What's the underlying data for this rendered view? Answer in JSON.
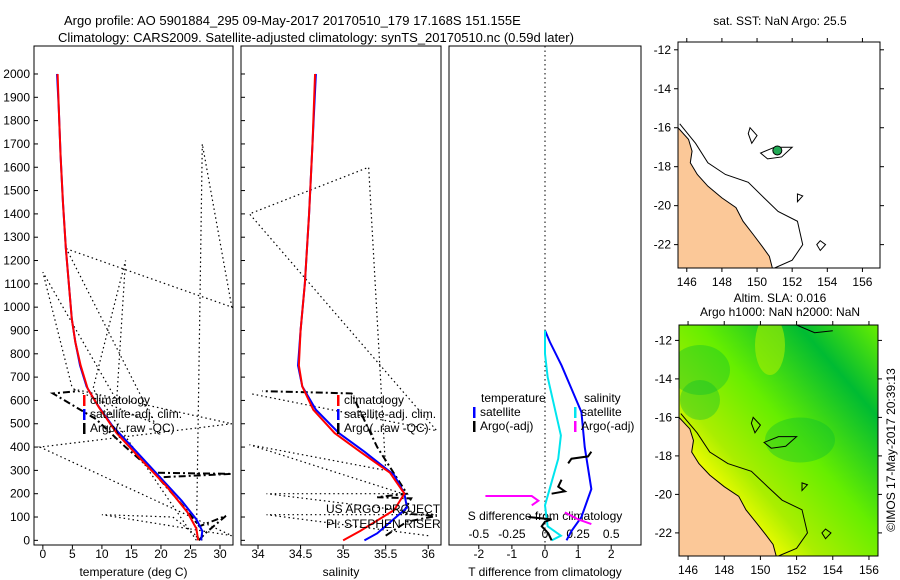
{
  "title_line1": "Argo profile: AO 5901884_295 09-May-2017 20170510_179 17.168S 151.155E",
  "title_line2": "Climatology: CARS2009. Satellite-adjusted climatology: synTS_20170510.nc (0.59d later)",
  "colors": {
    "climatology": "#ff0000",
    "satellite": "#0000ff",
    "argo": "#000000",
    "s_satellite": "#00e5ee",
    "s_argo": "#ff00ff",
    "land": "#fbc898",
    "sla_high": "#ffff00",
    "sla_mid": "#66ee00",
    "sla_low": "#00bb33",
    "float_marker": "#22aa55"
  },
  "chart_data": [
    {
      "type": "line",
      "name": "temperature-profile",
      "xlabel": "temperature (deg C)",
      "ylabel": "depth",
      "xlim": [
        -1.5,
        32.2
      ],
      "ylim": [
        2120,
        -20
      ],
      "xticks": [
        0,
        5,
        10,
        15,
        20,
        25,
        30
      ],
      "yticks": [
        0,
        100,
        200,
        300,
        400,
        500,
        600,
        700,
        800,
        900,
        1000,
        1100,
        1200,
        1300,
        1400,
        1500,
        1600,
        1700,
        1800,
        1900,
        2000
      ],
      "legend": [
        "climatology",
        "satellite-adj. clim.",
        "Argo(..raw -QC)"
      ],
      "series": [
        {
          "name": "climatology",
          "style": "solid",
          "color_key": "climatology",
          "points": [
            [
              26.3,
              0
            ],
            [
              26,
              50
            ],
            [
              24.5,
              120
            ],
            [
              21,
              230
            ],
            [
              16.5,
              350
            ],
            [
              12.5,
              460
            ],
            [
              9.5,
              570
            ],
            [
              7.6,
              650
            ],
            [
              6.4,
              750
            ],
            [
              5.5,
              850
            ],
            [
              4.9,
              950
            ],
            [
              4.4,
              1100
            ],
            [
              3.9,
              1250
            ],
            [
              3.4,
              1450
            ],
            [
              3,
              1650
            ],
            [
              2.7,
              1850
            ],
            [
              2.5,
              2000
            ]
          ]
        },
        {
          "name": "satellite-adj. clim.",
          "style": "solid",
          "color_key": "satellite",
          "points": [
            [
              26.8,
              0
            ],
            [
              27,
              40
            ],
            [
              26,
              90
            ],
            [
              23.5,
              170
            ],
            [
              19.5,
              280
            ],
            [
              15.5,
              390
            ],
            [
              11.8,
              490
            ],
            [
              9,
              590
            ],
            [
              7.4,
              660
            ],
            [
              6.3,
              750
            ],
            [
              5.5,
              850
            ],
            [
              4.9,
              950
            ],
            [
              4.4,
              1100
            ],
            [
              3.9,
              1250
            ],
            [
              3.4,
              1450
            ],
            [
              3,
              1650
            ],
            [
              2.7,
              1850
            ],
            [
              2.4,
              2000
            ]
          ]
        },
        {
          "name": "Argo(..raw -QC)",
          "style": "dashdot",
          "color_key": "argo",
          "points": [
            [
              26.4,
              0
            ],
            [
              27.5,
              30
            ],
            [
              31,
              105
            ],
            [
              26.5,
              60
            ],
            [
              24,
              140
            ],
            [
              19.5,
              270
            ],
            [
              32,
              285
            ],
            [
              19,
              290
            ],
            [
              14,
              400
            ],
            [
              9,
              520
            ],
            [
              1.7,
              630
            ],
            [
              6,
              640
            ]
          ]
        },
        {
          "name": "Argo raw",
          "style": "dotted",
          "color_key": "argo",
          "points": [
            [
              27,
              0
            ],
            [
              22,
              100
            ],
            [
              10,
              110
            ],
            [
              32,
              20
            ],
            [
              -0.5,
              400
            ],
            [
              32,
              500
            ],
            [
              5,
              650
            ],
            [
              19,
              500
            ],
            [
              4,
              1250
            ],
            [
              32,
              1000
            ],
            [
              27,
              1700
            ],
            [
              26,
              0
            ],
            [
              8.5,
              650
            ],
            [
              14,
              1200
            ],
            [
              12.5,
              600
            ],
            [
              0,
              1150
            ],
            [
              5,
              650
            ]
          ]
        }
      ]
    },
    {
      "type": "line",
      "name": "salinity-profile",
      "xlabel": "salinity",
      "ylabel": "depth",
      "xlim": [
        33.8,
        36.15
      ],
      "ylim": [
        2120,
        -20
      ],
      "xticks": [
        34,
        34.5,
        35,
        35.5,
        36
      ],
      "legend": [
        "climatology",
        "satellite-adj. clim.",
        "Argo(..raw -QC)"
      ],
      "annotation": [
        "US ARGO PROJECT",
        "PI: STEPHEN RISER"
      ],
      "series": [
        {
          "name": "climatology",
          "style": "solid",
          "color_key": "climatology",
          "points": [
            [
              35,
              0
            ],
            [
              35.2,
              40
            ],
            [
              35.6,
              130
            ],
            [
              35.72,
              200
            ],
            [
              35.55,
              290
            ],
            [
              35.2,
              380
            ],
            [
              34.9,
              460
            ],
            [
              34.65,
              560
            ],
            [
              34.52,
              660
            ],
            [
              34.48,
              750
            ],
            [
              34.5,
              900
            ],
            [
              34.55,
              1100
            ],
            [
              34.6,
              1400
            ],
            [
              34.64,
              1700
            ],
            [
              34.67,
              2000
            ]
          ]
        },
        {
          "name": "satellite-adj. clim.",
          "style": "solid",
          "color_key": "satellite",
          "points": [
            [
              35.25,
              0
            ],
            [
              35.4,
              30
            ],
            [
              35.75,
              140
            ],
            [
              35.72,
              200
            ],
            [
              35.6,
              280
            ],
            [
              35.25,
              380
            ],
            [
              34.95,
              460
            ],
            [
              34.68,
              560
            ],
            [
              34.52,
              660
            ],
            [
              34.47,
              750
            ],
            [
              34.5,
              900
            ],
            [
              34.55,
              1100
            ],
            [
              34.6,
              1400
            ],
            [
              34.64,
              1700
            ],
            [
              34.68,
              2000
            ]
          ]
        },
        {
          "name": "Argo(..raw -QC)",
          "style": "dashdot",
          "color_key": "argo",
          "points": [
            [
              35.5,
              20
            ],
            [
              35.75,
              80
            ],
            [
              36.1,
              105
            ],
            [
              35.7,
              115
            ],
            [
              35.8,
              180
            ],
            [
              35.4,
              185
            ],
            [
              35.75,
              200
            ],
            [
              35.4,
              400
            ],
            [
              35.1,
              630
            ],
            [
              34.05,
              640
            ]
          ]
        },
        {
          "name": "Argo raw",
          "style": "dotted",
          "color_key": "argo",
          "points": [
            [
              36,
              20
            ],
            [
              34.1,
              110
            ],
            [
              36.1,
              110
            ],
            [
              34.1,
              200
            ],
            [
              35.7,
              200
            ],
            [
              33.9,
              410
            ],
            [
              35.5,
              300
            ],
            [
              35.3,
              1600
            ],
            [
              33.9,
              1400
            ],
            [
              36.1,
              470
            ],
            [
              33.9,
              630
            ]
          ]
        }
      ]
    },
    {
      "type": "line",
      "name": "difference-profile",
      "xlabel": "T difference from climatology",
      "x2label": "S difference from climatology",
      "xlim": [
        -2.9,
        2.9
      ],
      "ylim": [
        2120,
        -20
      ],
      "xticks": [
        -2,
        -1,
        0,
        1,
        2
      ],
      "x2ticks": [
        -0.5,
        -0.25,
        0,
        0.25,
        0.5
      ],
      "x2tick_labels": [
        "-0.5",
        "-0.25",
        "0",
        "0.25",
        "0.5"
      ],
      "legend_headers": [
        "temperature",
        "salinity"
      ],
      "legend": [
        "satellite",
        "Argo(-adj)",
        "satellite",
        "Argo(-adj)"
      ],
      "series": [
        {
          "name": "T satellite",
          "axis": "T",
          "color_key": "satellite",
          "points": [
            [
              0.65,
              0
            ],
            [
              0.8,
              40
            ],
            [
              1.1,
              100
            ],
            [
              1.3,
              180
            ],
            [
              1.4,
              220
            ],
            [
              1.2,
              400
            ],
            [
              1.1,
              550
            ],
            [
              0.8,
              650
            ],
            [
              0.5,
              750
            ],
            [
              0.15,
              850
            ],
            [
              0,
              900
            ]
          ]
        },
        {
          "name": "S satellite",
          "axis": "S",
          "color_key": "s_satellite",
          "points": [
            [
              0.05,
              0
            ],
            [
              0.12,
              20
            ],
            [
              0.02,
              60
            ],
            [
              0,
              150
            ],
            [
              0.05,
              250
            ],
            [
              0.1,
              350
            ],
            [
              0.12,
              450
            ],
            [
              0.08,
              550
            ],
            [
              0.02,
              700
            ],
            [
              0,
              800
            ],
            [
              0,
              900
            ]
          ]
        },
        {
          "name": "T Argo(-adj)",
          "axis": "T",
          "color_key": "argo",
          "points": [
            [
              -0.5,
              100
            ],
            [
              0.2,
              90
            ],
            [
              0,
              80
            ],
            [
              -0.1,
              60
            ],
            [
              0.1,
              30
            ],
            [
              0.2,
              0
            ]
          ]
        },
        {
          "name": "T Argo(-adj) deep",
          "axis": "T",
          "color_key": "argo",
          "points": [
            [
              0.2,
              200
            ],
            [
              0.6,
              210
            ],
            [
              0.4,
              230
            ],
            [
              0.5,
              260
            ]
          ]
        },
        {
          "name": "T Argo(-adj) mid",
          "axis": "T",
          "color_key": "argo",
          "points": [
            [
              0.7,
              330
            ],
            [
              0.8,
              350
            ],
            [
              1.3,
              360
            ],
            [
              1.4,
              380
            ]
          ]
        },
        {
          "name": "S Argo(-adj)",
          "axis": "S",
          "color_key": "s_argo",
          "points": [
            [
              -0.45,
              190
            ],
            [
              -0.1,
              190
            ],
            [
              -0.05,
              170
            ],
            [
              -0.1,
              150
            ]
          ]
        },
        {
          "name": "S Argo(-adj) top",
          "axis": "S",
          "color_key": "s_argo",
          "points": [
            [
              0.15,
              120
            ],
            [
              0.25,
              90
            ],
            [
              0.35,
              70
            ]
          ]
        }
      ]
    },
    {
      "type": "heatmap",
      "name": "sst-map",
      "title": "sat. SST: NaN Argo: 25.5",
      "xlim": [
        145.5,
        157
      ],
      "ylim": [
        -23.2,
        -11.6
      ],
      "xticks": [
        146,
        148,
        150,
        152,
        154,
        156
      ],
      "yticks": [
        -12,
        -14,
        -16,
        -18,
        -20,
        -22
      ],
      "float_position": [
        151.155,
        -17.168
      ]
    },
    {
      "type": "heatmap",
      "name": "sla-map",
      "title": "Altim. SLA: 0.016",
      "subtitle": "Argo h1000: NaN h2000: NaN",
      "xlim": [
        145.5,
        156.5
      ],
      "ylim": [
        -23.2,
        -11.2
      ],
      "xticks": [
        146,
        148,
        150,
        152,
        154,
        156
      ],
      "yticks": [
        -12,
        -14,
        -16,
        -18,
        -20,
        -22
      ],
      "side_label": "©IMOS 17-May-2017 20:39:13"
    }
  ]
}
